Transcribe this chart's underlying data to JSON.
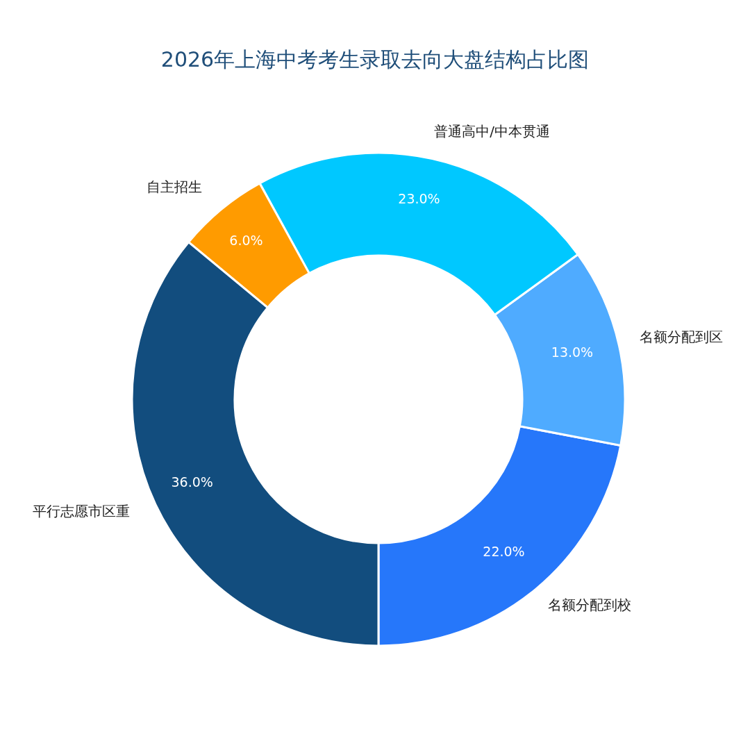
{
  "chart_data": {
    "type": "donut",
    "title": "2026年上海中考考生录取去向大盘结构占比图",
    "categories": [
      "名额分配到校",
      "名额分配到区",
      "普通高中/中本贯通",
      "自主招生",
      "平行志愿市区重"
    ],
    "values": [
      22,
      13,
      23,
      6,
      36
    ],
    "value_labels": [
      "22.0%",
      "13.0%",
      "23.0%",
      "6.0%",
      "36.0%"
    ],
    "colors": [
      "#2677fa",
      "#4fabff",
      "#00c8ff",
      "#ff9b00",
      "#124d7e"
    ]
  }
}
